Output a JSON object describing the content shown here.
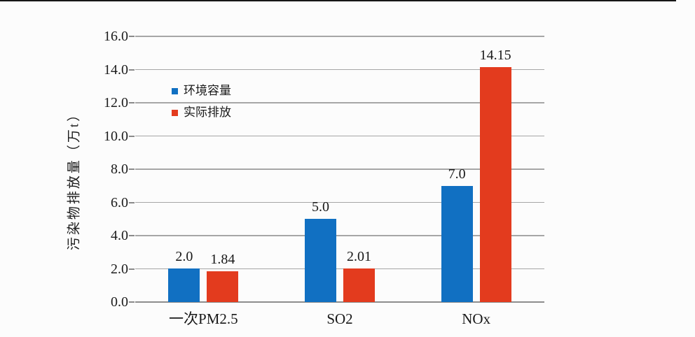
{
  "page": {
    "background_color": "#fcfcfc",
    "top_edge_line_color": "#161616"
  },
  "chart_data": {
    "type": "bar",
    "categories": [
      "一次PM2.5",
      "SO2",
      "NOx"
    ],
    "series": [
      {
        "name": "环境容量",
        "color": "#1170c2",
        "values": [
          2.0,
          5.0,
          7.0
        ],
        "labels": [
          "2.0",
          "5.0",
          "7.0"
        ]
      },
      {
        "name": "实际排放",
        "color": "#e33b1e",
        "values": [
          1.84,
          2.01,
          14.15
        ],
        "labels": [
          "1.84",
          "2.01",
          "14.15"
        ]
      }
    ],
    "title": "",
    "xlabel": "",
    "ylabel": "污染物排放量（万t）",
    "ylim": [
      0,
      16
    ],
    "ytick_step": 2,
    "ytick_labels": [
      "0.0",
      "2.0",
      "4.0",
      "6.0",
      "8.0",
      "10.0",
      "12.0",
      "14.0",
      "16.0"
    ],
    "grid": true,
    "legend_position": "inside-upper-left"
  }
}
